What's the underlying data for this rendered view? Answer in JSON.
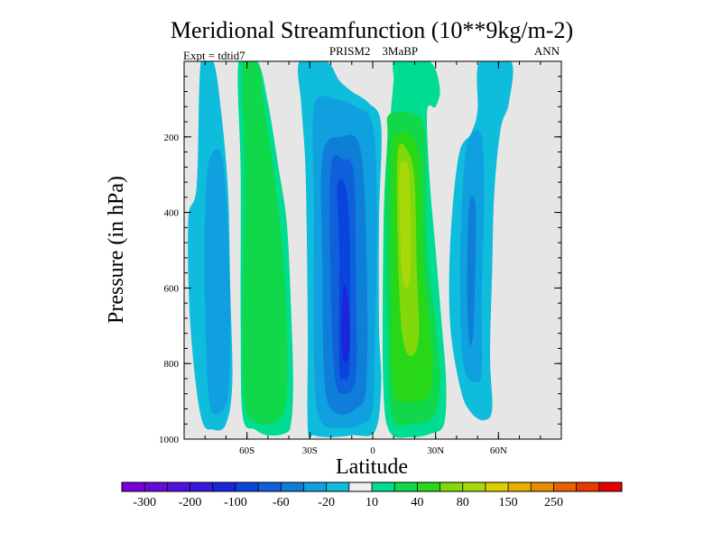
{
  "chart_data": {
    "type": "contour",
    "title": "Meridional Streamfunction (10**9kg/m-2)",
    "subtitle_left": "Expt = tdtid7",
    "subtitle_center": "PRISM2    3MaBP",
    "subtitle_right": "ANN",
    "xlabel": "Latitude",
    "ylabel": "Pressure (in hPa)",
    "xlim": [
      -90,
      90
    ],
    "ylim": [
      1000,
      0
    ],
    "x_ticks": [
      {
        "value": -60,
        "label": "60S"
      },
      {
        "value": -30,
        "label": "30S"
      },
      {
        "value": 0,
        "label": "0"
      },
      {
        "value": 30,
        "label": "30N"
      },
      {
        "value": 60,
        "label": "60N"
      }
    ],
    "y_ticks": [
      {
        "value": 200,
        "label": "200"
      },
      {
        "value": 400,
        "label": "400"
      },
      {
        "value": 600,
        "label": "600"
      },
      {
        "value": 800,
        "label": "800"
      },
      {
        "value": 1000,
        "label": "1000"
      }
    ],
    "missing_color": "#e6e6e6",
    "colorbar": {
      "levels": [
        -300,
        -250,
        -200,
        -150,
        -100,
        -80,
        -60,
        -40,
        -20,
        -10,
        10,
        20,
        40,
        60,
        80,
        100,
        150,
        200,
        250
      ],
      "labeled_levels": [
        {
          "value": -300,
          "label": "-300"
        },
        {
          "value": -200,
          "label": "-200"
        },
        {
          "value": -100,
          "label": "-100"
        },
        {
          "value": -60,
          "label": "-60"
        },
        {
          "value": -20,
          "label": "-20"
        },
        {
          "value": 10,
          "label": "10"
        },
        {
          "value": 40,
          "label": "40"
        },
        {
          "value": 80,
          "label": "80"
        },
        {
          "value": 150,
          "label": "150"
        },
        {
          "value": 250,
          "label": "250"
        }
      ],
      "colors": [
        "#7a00d8",
        "#6a0ad9",
        "#5010dd",
        "#3818dc",
        "#1c24dc",
        "#0a44dc",
        "#1060dc",
        "#0e7ed8",
        "#10a0e0",
        "#10bcdc",
        "#eeeeee",
        "#00dc90",
        "#10d84a",
        "#28d818",
        "#82d80a",
        "#a8d80a",
        "#dcd000",
        "#e6b000",
        "#e88c00",
        "#e86000",
        "#e83a00",
        "#e80000"
      ]
    },
    "features": [
      {
        "label": "southern high-latitude cell",
        "band": "-10 to -20",
        "color_index": 9,
        "outline": [
          [
            -82,
            0
          ],
          [
            -76,
            0
          ],
          [
            -72,
            150
          ],
          [
            -69,
            350
          ],
          [
            -68,
            600
          ],
          [
            -67,
            850
          ],
          [
            -70,
            960
          ],
          [
            -76,
            975
          ],
          [
            -82,
            940
          ],
          [
            -87,
            700
          ],
          [
            -88,
            420
          ],
          [
            -84,
            330
          ]
        ]
      },
      {
        "label": "southern high-latitude core",
        "band": "-20 to -40",
        "color_index": 8,
        "outline": [
          [
            -78,
            260
          ],
          [
            -72,
            250
          ],
          [
            -69,
            450
          ],
          [
            -68,
            700
          ],
          [
            -69,
            880
          ],
          [
            -73,
            930
          ],
          [
            -78,
            900
          ],
          [
            -80,
            650
          ],
          [
            -80,
            400
          ]
        ]
      },
      {
        "label": "southern Ferrel cell",
        "band": "10 to 20",
        "color_index": 11,
        "outline": [
          [
            -64,
            0
          ],
          [
            -55,
            0
          ],
          [
            -50,
            110
          ],
          [
            -45,
            280
          ],
          [
            -41,
            430
          ],
          [
            -39,
            650
          ],
          [
            -38,
            850
          ],
          [
            -39,
            960
          ],
          [
            -42,
            985
          ],
          [
            -50,
            990
          ],
          [
            -56,
            975
          ],
          [
            -62,
            940
          ],
          [
            -63,
            700
          ],
          [
            -63,
            300
          ]
        ]
      },
      {
        "label": "southern Ferrel core",
        "band": "20 to 40",
        "color_index": 12,
        "outline": [
          [
            -62,
            0
          ],
          [
            -55,
            0
          ],
          [
            -52,
            110
          ],
          [
            -47,
            300
          ],
          [
            -43,
            500
          ],
          [
            -41,
            700
          ],
          [
            -41,
            880
          ],
          [
            -44,
            945
          ],
          [
            -51,
            962
          ],
          [
            -57,
            950
          ],
          [
            -61,
            910
          ],
          [
            -62,
            700
          ],
          [
            -61,
            300
          ]
        ]
      },
      {
        "label": "southern Hadley cell edge",
        "band": "-10 to -20",
        "color_index": 9,
        "outline": [
          [
            -35,
            0
          ],
          [
            -22,
            0
          ],
          [
            -16,
            50
          ],
          [
            -10,
            80
          ],
          [
            -2,
            110
          ],
          [
            4,
            170
          ],
          [
            3,
            420
          ],
          [
            3,
            700
          ],
          [
            4,
            860
          ],
          [
            1,
            980
          ],
          [
            -10,
            990
          ],
          [
            -20,
            995
          ],
          [
            -28,
            990
          ],
          [
            -31,
            970
          ],
          [
            -31,
            700
          ],
          [
            -32,
            300
          ],
          [
            -34,
            120
          ]
        ]
      },
      {
        "label": "southern Hadley band -40",
        "band": "-20 to -40",
        "color_index": 8,
        "outline": [
          [
            -28,
            120
          ],
          [
            -18,
            100
          ],
          [
            -8,
            120
          ],
          [
            0,
            170
          ],
          [
            2,
            400
          ],
          [
            1,
            750
          ],
          [
            0,
            920
          ],
          [
            -5,
            960
          ],
          [
            -15,
            970
          ],
          [
            -25,
            950
          ],
          [
            -28,
            800
          ],
          [
            -28,
            400
          ]
        ]
      },
      {
        "label": "southern Hadley band -60",
        "band": "-40 to -60",
        "color_index": 7,
        "outline": [
          [
            -24,
            250
          ],
          [
            -15,
            200
          ],
          [
            -6,
            230
          ],
          [
            -3,
            500
          ],
          [
            -3,
            850
          ],
          [
            -8,
            920
          ],
          [
            -18,
            930
          ],
          [
            -23,
            850
          ],
          [
            -24,
            550
          ]
        ]
      },
      {
        "label": "southern Hadley band -80",
        "band": "-60 to -80",
        "color_index": 6,
        "outline": [
          [
            -20,
            280
          ],
          [
            -14,
            260
          ],
          [
            -9,
            300
          ],
          [
            -8,
            600
          ],
          [
            -8,
            830
          ],
          [
            -13,
            880
          ],
          [
            -18,
            840
          ],
          [
            -20,
            600
          ]
        ]
      },
      {
        "label": "southern Hadley band -100",
        "band": "-80 to -100",
        "color_index": 5,
        "outline": [
          [
            -17,
            330
          ],
          [
            -13,
            330
          ],
          [
            -11,
            470
          ],
          [
            -11,
            800
          ],
          [
            -14,
            840
          ],
          [
            -16,
            800
          ],
          [
            -16,
            480
          ]
        ]
      },
      {
        "label": "southern Hadley core",
        "band": "-100 to -150",
        "color_index": 4,
        "outline": [
          [
            -14,
            600
          ],
          [
            -12,
            620
          ],
          [
            -11,
            730
          ],
          [
            -12,
            790
          ],
          [
            -14,
            790
          ],
          [
            -15,
            730
          ]
        ]
      },
      {
        "label": "northern Hadley cell edge",
        "band": "10 to 20",
        "color_index": 11,
        "outline": [
          [
            11,
            0
          ],
          [
            27,
            0
          ],
          [
            32,
            70
          ],
          [
            30,
            120
          ],
          [
            26,
            130
          ],
          [
            27,
            300
          ],
          [
            30,
            500
          ],
          [
            33,
            700
          ],
          [
            35,
            850
          ],
          [
            34,
            960
          ],
          [
            28,
            985
          ],
          [
            18,
            995
          ],
          [
            8,
            980
          ],
          [
            5,
            850
          ],
          [
            5,
            500
          ],
          [
            6,
            300
          ],
          [
            8,
            180
          ],
          [
            9,
            110
          ],
          [
            10,
            50
          ]
        ]
      },
      {
        "label": "northern Hadley band 40",
        "band": "20 to 40",
        "color_index": 12,
        "outline": [
          [
            8,
            140
          ],
          [
            20,
            140
          ],
          [
            25,
            200
          ],
          [
            26,
            500
          ],
          [
            30,
            700
          ],
          [
            32,
            850
          ],
          [
            29,
            940
          ],
          [
            18,
            960
          ],
          [
            9,
            940
          ],
          [
            7,
            700
          ],
          [
            6,
            400
          ],
          [
            7,
            200
          ]
        ]
      },
      {
        "label": "northern Hadley band 60",
        "band": "40 to 60",
        "color_index": 13,
        "outline": [
          [
            10,
            200
          ],
          [
            19,
            200
          ],
          [
            23,
            300
          ],
          [
            24,
            550
          ],
          [
            28,
            750
          ],
          [
            27,
            880
          ],
          [
            18,
            900
          ],
          [
            10,
            870
          ],
          [
            9,
            600
          ],
          [
            9,
            300
          ]
        ]
      },
      {
        "label": "northern Hadley band 80",
        "band": "60 to 80",
        "color_index": 14,
        "outline": [
          [
            12,
            240
          ],
          [
            17,
            240
          ],
          [
            20,
            320
          ],
          [
            21,
            550
          ],
          [
            22,
            730
          ],
          [
            18,
            780
          ],
          [
            14,
            720
          ],
          [
            12,
            500
          ]
        ]
      },
      {
        "label": "northern Hadley core",
        "band": "80 to 100",
        "color_index": 15,
        "outline": [
          [
            13,
            280
          ],
          [
            17,
            280
          ],
          [
            18,
            400
          ],
          [
            18,
            560
          ],
          [
            16,
            600
          ],
          [
            14,
            560
          ],
          [
            13,
            420
          ]
        ]
      },
      {
        "label": "northern Ferrel cell",
        "band": "-10 to -20",
        "color_index": 9,
        "outline": [
          [
            51,
            0
          ],
          [
            66,
            0
          ],
          [
            65,
            110
          ],
          [
            61,
            180
          ],
          [
            58,
            350
          ],
          [
            57,
            550
          ],
          [
            56,
            780
          ],
          [
            57,
            920
          ],
          [
            53,
            950
          ],
          [
            47,
            930
          ],
          [
            42,
            870
          ],
          [
            37,
            700
          ],
          [
            37,
            480
          ],
          [
            41,
            250
          ],
          [
            47,
            190
          ],
          [
            50,
            130
          ]
        ]
      },
      {
        "label": "northern Ferrel core",
        "band": "-20 to -40",
        "color_index": 8,
        "outline": [
          [
            45,
            220
          ],
          [
            52,
            200
          ],
          [
            53,
            400
          ],
          [
            52,
            620
          ],
          [
            52,
            820
          ],
          [
            49,
            850
          ],
          [
            44,
            820
          ],
          [
            42,
            700
          ],
          [
            42,
            450
          ]
        ]
      },
      {
        "label": "northern Ferrel inner",
        "band": "-40 to -60",
        "color_index": 7,
        "outline": [
          [
            46,
            380
          ],
          [
            49,
            380
          ],
          [
            49,
            520
          ],
          [
            48,
            720
          ],
          [
            46,
            740
          ],
          [
            45,
            600
          ]
        ]
      }
    ]
  }
}
